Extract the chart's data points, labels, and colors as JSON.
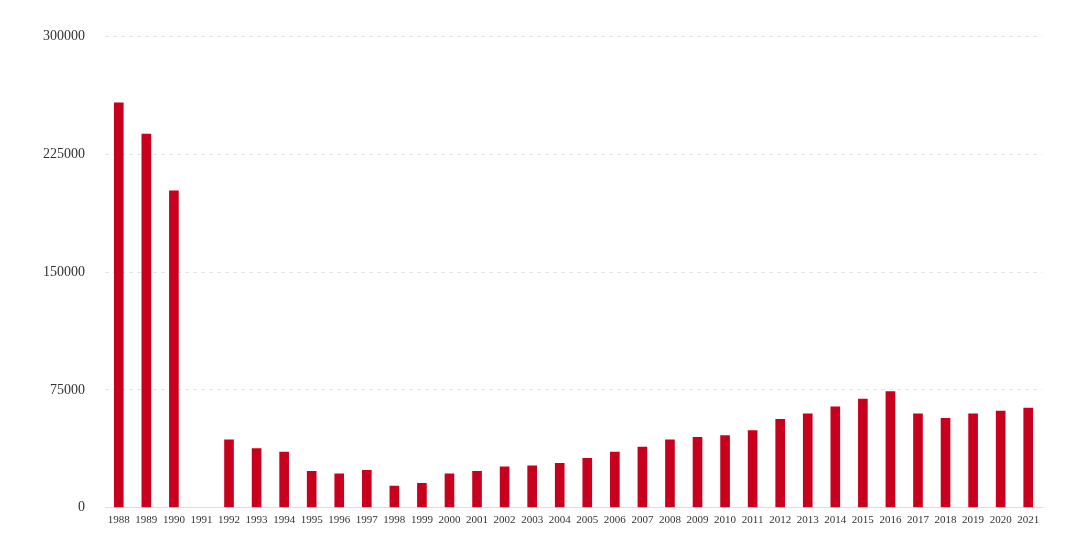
{
  "chart_data": {
    "type": "bar",
    "categories": [
      "1988",
      "1989",
      "1990",
      "1991",
      "1992",
      "1993",
      "1994",
      "1995",
      "1996",
      "1997",
      "1998",
      "1999",
      "2000",
      "2001",
      "2002",
      "2003",
      "2004",
      "2005",
      "2006",
      "2007",
      "2008",
      "2009",
      "2010",
      "2011",
      "2012",
      "2013",
      "2014",
      "2015",
      "2016",
      "2017",
      "2018",
      "2019",
      "2020",
      "2021"
    ],
    "values": [
      258000,
      238000,
      202000,
      null,
      43400,
      37900,
      35700,
      23400,
      21900,
      24100,
      14000,
      15800,
      21900,
      23400,
      26300,
      26900,
      28500,
      31700,
      35700,
      38800,
      43400,
      45100,
      46200,
      49300,
      56500,
      60000,
      64400,
      69400,
      74200,
      60000,
      57200,
      60000,
      61800,
      63700
    ],
    "color": "#c8001e",
    "ylim": [
      0,
      300000
    ],
    "yticks": [
      0,
      75000,
      150000,
      225000,
      300000
    ],
    "grid": "y",
    "legend": false
  }
}
